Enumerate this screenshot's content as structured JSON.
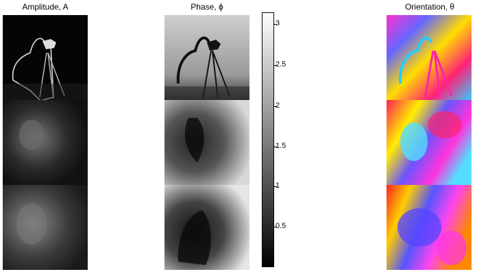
{
  "panels": [
    {
      "title": "Amplitude, A",
      "type": "amplitude"
    },
    {
      "title": "Phase, ϕ",
      "type": "phase"
    },
    {
      "title": "Orientation, θ",
      "type": "orientation"
    }
  ],
  "colorbar": {
    "ticks": [
      "3",
      "2.5",
      "2",
      "1.5",
      "1",
      "0.5"
    ]
  }
}
